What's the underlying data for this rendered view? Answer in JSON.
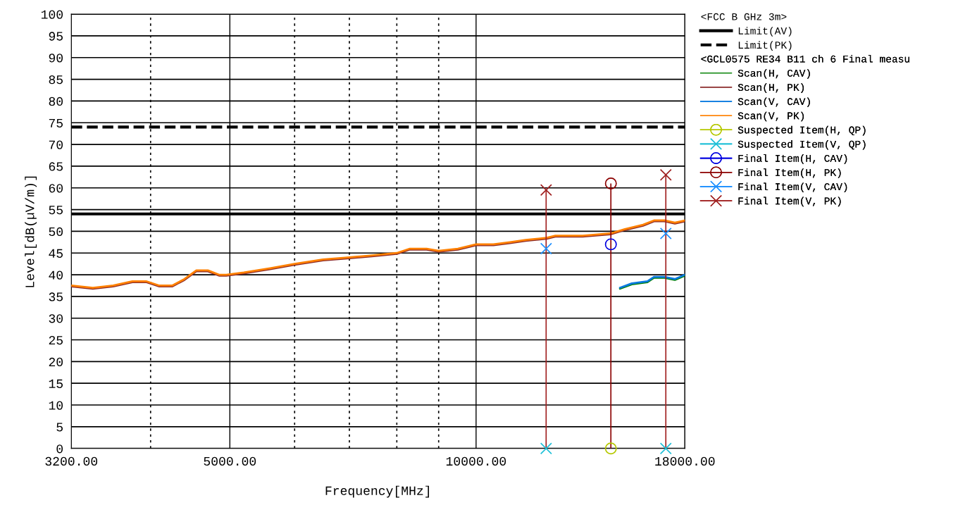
{
  "chart_data": {
    "type": "line",
    "xlabel": "Frequency[MHz]",
    "ylabel": "Level[dB(µV/m)]",
    "log": "x",
    "grid": true,
    "legend": "top right",
    "xlim": [
      3200,
      18000
    ],
    "ylim": [
      0,
      100
    ],
    "xticks": [
      {
        "value": 3200,
        "label": "3200.00"
      },
      {
        "value": 4000,
        "label": null
      },
      {
        "value": 5000,
        "label": "5000.00"
      },
      {
        "value": 6000,
        "label": null
      },
      {
        "value": 7000,
        "label": null
      },
      {
        "value": 8000,
        "label": null
      },
      {
        "value": 9000,
        "label": null
      },
      {
        "value": 10000,
        "label": "10000.00"
      },
      {
        "value": 18000,
        "label": "18000.00"
      }
    ],
    "yticks": [
      0,
      5,
      10,
      15,
      20,
      25,
      30,
      35,
      40,
      45,
      50,
      55,
      60,
      65,
      70,
      75,
      80,
      85,
      90,
      95,
      100
    ],
    "annotations": [
      "<FCC B GHz 3m>",
      "<GCL0575 RE34 B11 ch 6 Final measu"
    ],
    "ref_lines": [
      {
        "axis": "y",
        "value": 54,
        "label": "Limit(AV)",
        "color": "#000000",
        "line_style": "solid"
      },
      {
        "axis": "y",
        "value": 74,
        "label": "Limit(PK)",
        "color": "#000000",
        "line_style": "dashed"
      }
    ],
    "series": [
      {
        "name": "Scan(H, CAV)",
        "color": "#008000",
        "x": [
          15000,
          15500,
          16200,
          16500,
          17000,
          17500,
          18000
        ],
        "values": [
          36.8,
          37.8,
          38.3,
          39.3,
          39.3,
          38.8,
          39.8
        ]
      },
      {
        "name": "Scan(H, PK)",
        "color": "#8b2a2a",
        "x": [
          3200,
          3400,
          3600,
          3800,
          3950,
          4100,
          4250,
          4400,
          4550,
          4700,
          4850,
          4950,
          5200,
          5600,
          6000,
          6500,
          7000,
          7500,
          8000,
          8300,
          8700,
          9000,
          9500,
          10000,
          10500,
          11000,
          11500,
          12200,
          12500,
          13500,
          14600,
          15200,
          16000,
          16500,
          17000,
          17500,
          18000
        ],
        "values": [
          37.3,
          36.8,
          37.3,
          38.3,
          38.3,
          37.3,
          37.3,
          38.8,
          40.8,
          40.8,
          39.8,
          39.8,
          40.3,
          41.3,
          42.3,
          43.3,
          43.8,
          44.3,
          44.8,
          45.8,
          45.8,
          45.3,
          45.8,
          46.8,
          46.8,
          47.3,
          47.8,
          48.3,
          48.8,
          48.8,
          49.3,
          50.3,
          51.3,
          52.3,
          52.3,
          51.8,
          52.3
        ]
      },
      {
        "name": "Scan(V, CAV)",
        "color": "#0a7ae0",
        "x": [
          15000,
          15500,
          16200,
          16500,
          17000,
          17500,
          18000
        ],
        "values": [
          37,
          38,
          38.5,
          39.5,
          39.5,
          39,
          40
        ]
      },
      {
        "name": "Scan(V, PK)",
        "color": "#ff8000",
        "x": [
          3200,
          3400,
          3600,
          3800,
          3950,
          4100,
          4250,
          4400,
          4550,
          4700,
          4850,
          4950,
          5200,
          5600,
          6000,
          6500,
          7000,
          7500,
          8000,
          8300,
          8700,
          9000,
          9500,
          10000,
          10500,
          11000,
          11500,
          12200,
          12500,
          13500,
          14600,
          15200,
          16000,
          16500,
          17000,
          17500,
          18000
        ],
        "values": [
          37.5,
          37,
          37.5,
          38.5,
          38.5,
          37.5,
          37.5,
          39,
          41,
          41,
          40,
          40,
          40.5,
          41.5,
          42.5,
          43.5,
          44,
          44.5,
          45,
          46,
          46,
          45.5,
          46,
          47,
          47,
          47.5,
          48,
          48.5,
          49,
          49,
          49.5,
          50.5,
          51.5,
          52.5,
          52.5,
          52,
          52.5
        ]
      },
      {
        "name": "Suspected Item(H, QP)",
        "type": "scatter",
        "marker": "circle",
        "color": "#b5c800",
        "x": [
          14615
        ],
        "values": [
          0
        ]
      },
      {
        "name": "Suspected Item(V, QP)",
        "type": "scatter",
        "marker": "cross",
        "color": "#20c0d8",
        "x": [
          12180,
          17060
        ],
        "values": [
          0,
          0
        ]
      },
      {
        "name": "Final Item(H, CAV)",
        "type": "scatter",
        "marker": "circle",
        "color": "#0000e0",
        "x": [
          14615
        ],
        "values": [
          47
        ]
      },
      {
        "name": "Final Item(H, PK)",
        "type": "lollipop",
        "marker": "circle",
        "color": "#8b0000",
        "x": [
          14615
        ],
        "values": [
          61
        ]
      },
      {
        "name": "Final Item(V, CAV)",
        "type": "scatter",
        "marker": "cross",
        "color": "#1e90ff",
        "x": [
          12180,
          17060
        ],
        "values": [
          46,
          49.5
        ]
      },
      {
        "name": "Final Item(V, PK)",
        "type": "lollipop",
        "marker": "cross",
        "color": "#a02020",
        "x": [
          12180,
          17060
        ],
        "values": [
          59.5,
          63
        ]
      }
    ]
  }
}
